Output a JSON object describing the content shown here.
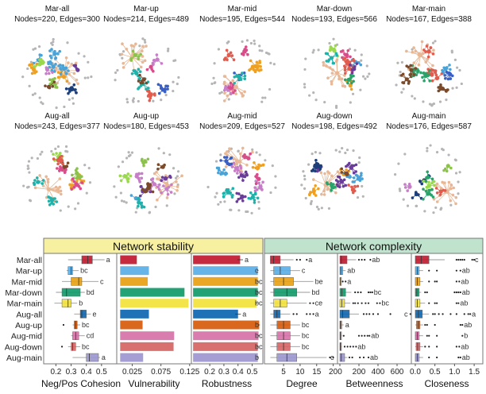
{
  "networks": [
    {
      "name": "Mar-all",
      "stats": "Nodes=220, Edges=300"
    },
    {
      "name": "Mar-up",
      "stats": "Nodes=214, Edges=489"
    },
    {
      "name": "Mar-mid",
      "stats": "Nodes=195, Edges=544"
    },
    {
      "name": "Mar-down",
      "stats": "Nodes=193, Edges=566"
    },
    {
      "name": "Mar-main",
      "stats": "Nodes=167, Edges=388"
    },
    {
      "name": "Aug-all",
      "stats": "Nodes=243, Edges=377"
    },
    {
      "name": "Aug-up",
      "stats": "Nodes=180, Edges=453"
    },
    {
      "name": "Aug-mid",
      "stats": "Nodes=209, Edges=527"
    },
    {
      "name": "Aug-down",
      "stats": "Nodes=198, Edges=492"
    },
    {
      "name": "Aug-main",
      "stats": "Nodes=176, Edges=587"
    }
  ],
  "network_palette": [
    "#e8b896",
    "#4aa3d8",
    "#2aa36a",
    "#f0a020",
    "#8bc34a",
    "#c77dc7",
    "#3a5fc4",
    "#e25b4c",
    "#7a4a2a",
    "#1d3f7a",
    "#9ad94c",
    "#d94c8a",
    "#20b2aa",
    "#6a3d9a",
    "#b0b0b0"
  ],
  "chart_data": {
    "type": "box+bar",
    "groups": [
      "Mar-all",
      "Mar-up",
      "Mar-mid",
      "Mar-down",
      "Mar-main",
      "Aug-all",
      "Aug-up",
      "Aug-mid",
      "Aug-down",
      "Aug-main"
    ],
    "group_colors": [
      "#c0182e",
      "#5aaee6",
      "#e8a012",
      "#109a6a",
      "#f2e23a",
      "#0d66b0",
      "#d65a0a",
      "#d672a8",
      "#d66464",
      "#9c96d0"
    ],
    "sections": [
      {
        "title": "Network stability",
        "color": "#f6f0a0"
      },
      {
        "title": "Network complexity",
        "color": "#bfe3cc"
      }
    ],
    "panels": [
      {
        "key": "cohesion",
        "section": 0,
        "kind": "box",
        "xlabel": "Neg/Pos Cohesion",
        "xlim": [
          0.13,
          0.6
        ],
        "ticks": [
          0.2,
          0.3,
          0.4,
          0.5
        ],
        "tick_labels": [
          "0.2",
          "0.3",
          "0.4",
          "0.5"
        ],
        "boxes": [
          {
            "q1": 0.37,
            "med": 0.41,
            "q3": 0.44,
            "lo": 0.28,
            "hi": 0.52,
            "out": [],
            "letter": "a"
          },
          {
            "q1": 0.28,
            "med": 0.3,
            "q3": 0.31,
            "lo": 0.27,
            "hi": 0.35,
            "out": [],
            "letter": "bc"
          },
          {
            "q1": 0.3,
            "med": 0.35,
            "q3": 0.37,
            "lo": 0.24,
            "hi": 0.48,
            "out": [],
            "letter": "c"
          },
          {
            "q1": 0.24,
            "med": 0.27,
            "q3": 0.36,
            "lo": 0.2,
            "hi": 0.39,
            "out": [],
            "letter": "bd"
          },
          {
            "q1": 0.24,
            "med": 0.28,
            "q3": 0.3,
            "lo": 0.19,
            "hi": 0.34,
            "out": [],
            "letter": "b"
          },
          {
            "q1": 0.36,
            "med": 0.37,
            "q3": 0.4,
            "lo": 0.32,
            "hi": 0.43,
            "out": [],
            "letter": "e"
          },
          {
            "q1": 0.32,
            "med": 0.33,
            "q3": 0.34,
            "lo": 0.31,
            "hi": 0.36,
            "out": [
              0.25
            ],
            "letter": "bc"
          },
          {
            "q1": 0.31,
            "med": 0.33,
            "q3": 0.35,
            "lo": 0.3,
            "hi": 0.39,
            "out": [],
            "letter": "cd"
          },
          {
            "q1": 0.3,
            "med": 0.31,
            "q3": 0.33,
            "lo": 0.28,
            "hi": 0.36,
            "out": [
              0.24
            ],
            "letter": "bc"
          },
          {
            "q1": 0.4,
            "med": 0.42,
            "q3": 0.48,
            "lo": 0.31,
            "hi": 0.49,
            "out": [],
            "letter": "a"
          }
        ]
      },
      {
        "key": "vulnerability",
        "section": 0,
        "kind": "bar",
        "xlabel": "Vulnerability",
        "xlim": [
          -0.002,
          0.128
        ],
        "bar_base": 0.004,
        "ticks": [
          0.025,
          0.075,
          0.125
        ],
        "tick_labels": [
          "0.025",
          "0.075",
          "0.125"
        ],
        "values": [
          0.033,
          0.054,
          0.052,
          0.116,
          0.123,
          0.054,
          0.043,
          0.098,
          0.097,
          0.044
        ]
      },
      {
        "key": "robustness",
        "section": 0,
        "kind": "bar",
        "xlabel": "Robustness",
        "xlim": [
          0.07,
          0.57
        ],
        "bar_base": 0.082,
        "ticks": [
          0.2,
          0.3,
          0.4,
          0.5
        ],
        "tick_labels": [
          "0.2",
          "0.3",
          "0.4",
          "0.5"
        ],
        "values": [
          0.415,
          0.54,
          0.54,
          0.54,
          0.53,
          0.4,
          0.55,
          0.545,
          0.54,
          0.54
        ],
        "errors": [
          0.02,
          0.005,
          0.005,
          0.005,
          0.008,
          0.02,
          0.005,
          0.005,
          0.005,
          0.005
        ],
        "letters": [
          "a",
          "c",
          "bc",
          "bc",
          "bc",
          "a",
          "b",
          "bc",
          "bc",
          "b"
        ]
      },
      {
        "key": "degree",
        "section": 1,
        "kind": "box",
        "xlabel": "Degree",
        "xlim": [
          -0.3,
          21.3
        ],
        "ticks": [
          5,
          10,
          15,
          20
        ],
        "tick_labels": [
          "5",
          "10",
          "15",
          "20"
        ],
        "boxes": [
          {
            "q1": 1,
            "med": 2,
            "q3": 4,
            "lo": 1,
            "hi": 8,
            "out": [
              9,
              10,
              12
            ],
            "letter": "a"
          },
          {
            "q1": 2,
            "med": 4,
            "q3": 7,
            "lo": 1,
            "hi": 10,
            "out": [],
            "letter": "c"
          },
          {
            "q1": 2,
            "med": 5,
            "q3": 8,
            "lo": 1,
            "hi": 14,
            "out": [],
            "letter": "be"
          },
          {
            "q1": 2,
            "med": 6,
            "q3": 9,
            "lo": 1,
            "hi": 13,
            "out": [],
            "letter": "bd"
          },
          {
            "q1": 2,
            "med": 4,
            "q3": 6,
            "lo": 1,
            "hi": 12,
            "out": [
              13,
              14
            ],
            "letter": "ce"
          },
          {
            "q1": 2,
            "med": 3,
            "q3": 4,
            "lo": 1,
            "hi": 7,
            "out": [
              8,
              9,
              12,
              13,
              14
            ],
            "letter": "a"
          },
          {
            "q1": 3,
            "med": 5,
            "q3": 7,
            "lo": 1,
            "hi": 10,
            "out": [],
            "letter": "bc"
          },
          {
            "q1": 3,
            "med": 5,
            "q3": 7,
            "lo": 1,
            "hi": 10,
            "out": [],
            "letter": "bc"
          },
          {
            "q1": 3,
            "med": 5,
            "q3": 7,
            "lo": 1,
            "hi": 10,
            "out": [],
            "letter": "bc"
          },
          {
            "q1": 3,
            "med": 6,
            "q3": 9,
            "lo": 1,
            "hi": 18,
            "out": [
              19,
              20
            ],
            "letter": "c"
          }
        ]
      },
      {
        "key": "betweenness",
        "section": 1,
        "kind": "box",
        "xlabel": "Betweenness",
        "xlim": [
          -25,
          750
        ],
        "ticks": [
          0,
          200,
          400,
          600
        ],
        "tick_labels": [
          "0",
          "200",
          "400",
          "600"
        ],
        "boxes": [
          {
            "q1": 0,
            "med": 15,
            "q3": 75,
            "lo": 0,
            "hi": 170,
            "out": [
              200,
              230,
              260,
              320
            ],
            "letter": "ab"
          },
          {
            "q1": 0,
            "med": 10,
            "q3": 30,
            "lo": 0,
            "hi": 60,
            "out": [],
            "letter": "ab"
          },
          {
            "q1": 0,
            "med": 3,
            "q3": 8,
            "lo": 0,
            "hi": 10,
            "out": [
              30,
              60
            ],
            "letter": "a"
          },
          {
            "q1": 0,
            "med": 20,
            "q3": 60,
            "lo": 0,
            "hi": 120,
            "out": [
              160,
              190,
              220,
              300,
              320,
              340
            ],
            "letter": "bc"
          },
          {
            "q1": 0,
            "med": 20,
            "q3": 50,
            "lo": 0,
            "hi": 110,
            "out": [
              140,
              160,
              190,
              230,
              270,
              300,
              390,
              420
            ],
            "letter": "bc"
          },
          {
            "q1": 0,
            "med": 30,
            "q3": 100,
            "lo": 0,
            "hi": 200,
            "out": [
              250,
              280,
              310,
              350,
              400,
              530,
              740
            ],
            "letter": "c"
          },
          {
            "q1": 0,
            "med": 5,
            "q3": 20,
            "lo": 0,
            "hi": 40,
            "out": [],
            "letter": "a"
          },
          {
            "q1": 0,
            "med": 5,
            "q3": 15,
            "lo": 0,
            "hi": 20,
            "out": [
              40,
              200,
              230,
              260,
              290,
              310
            ],
            "letter": "ab"
          },
          {
            "q1": 0,
            "med": 5,
            "q3": 15,
            "lo": 0,
            "hi": 20,
            "out": [
              50,
              80,
              110,
              140,
              170
            ],
            "letter": "ab"
          },
          {
            "q1": 0,
            "med": 15,
            "q3": 50,
            "lo": 0,
            "hi": 80,
            "out": [
              100,
              130,
              210,
              250,
              300
            ],
            "letter": "ab"
          }
        ]
      },
      {
        "key": "closeness",
        "section": 1,
        "kind": "box",
        "xlabel": "Closeness",
        "xlim": [
          -0.1,
          1.7
        ],
        "ticks": [
          0.0,
          0.5,
          1.0,
          1.5
        ],
        "tick_labels": [
          "0.0",
          "0.5",
          "1.0",
          "1.5"
        ],
        "boxes": [
          {
            "q1": 0,
            "med": 0.15,
            "q3": 0.35,
            "lo": 0,
            "hi": 0.75,
            "out": [
              1.05,
              1.1,
              1.15,
              1.2,
              1.25,
              1.45,
              1.5
            ],
            "letter": "c"
          },
          {
            "q1": 0,
            "med": 0.05,
            "q3": 0.1,
            "lo": 0,
            "hi": 0.2,
            "out": [
              0.35,
              0.55,
              1.05,
              1.15
            ],
            "letter": "ab"
          },
          {
            "q1": 0,
            "med": 0.05,
            "q3": 0.12,
            "lo": 0,
            "hi": 0.2,
            "out": [
              0.35,
              0.5,
              0.55,
              1.05,
              1.12
            ],
            "letter": "ab"
          },
          {
            "q1": 0,
            "med": 0.04,
            "q3": 0.1,
            "lo": 0,
            "hi": 0.15,
            "out": [
              0.25,
              0.3,
              1.0,
              1.05,
              1.1,
              1.15
            ],
            "letter": "ab"
          },
          {
            "q1": 0,
            "med": 0.05,
            "q3": 0.12,
            "lo": 0,
            "hi": 0.25,
            "out": [
              0.35,
              0.5,
              0.55,
              1.05,
              1.1
            ],
            "letter": "ab"
          },
          {
            "q1": 0,
            "med": 0.08,
            "q3": 0.18,
            "lo": 0,
            "hi": 0.35,
            "out": [
              0.45,
              0.5,
              0.6,
              0.7,
              0.9,
              1.05,
              1.25,
              1.35,
              1.4
            ],
            "letter": "a"
          },
          {
            "q1": 0.03,
            "med": 0.08,
            "q3": 0.12,
            "lo": 0,
            "hi": 0.2,
            "out": [
              0.25,
              0.3,
              0.5,
              1.15,
              1.2
            ],
            "letter": "ab"
          },
          {
            "q1": 0,
            "med": 0.05,
            "q3": 0.1,
            "lo": 0,
            "hi": 0.2,
            "out": [
              0.3,
              0.35,
              0.55,
              1.2
            ],
            "letter": "b"
          },
          {
            "q1": 0.02,
            "med": 0.06,
            "q3": 0.12,
            "lo": 0,
            "hi": 0.2,
            "out": [
              0.25,
              0.35,
              0.55,
              1.05,
              1.12
            ],
            "letter": "ab"
          },
          {
            "q1": 0,
            "med": 0.05,
            "q3": 0.1,
            "lo": 0,
            "hi": 0.2,
            "out": [
              0.35,
              0.55,
              1.1,
              1.15
            ],
            "letter": "ab"
          }
        ]
      }
    ]
  }
}
